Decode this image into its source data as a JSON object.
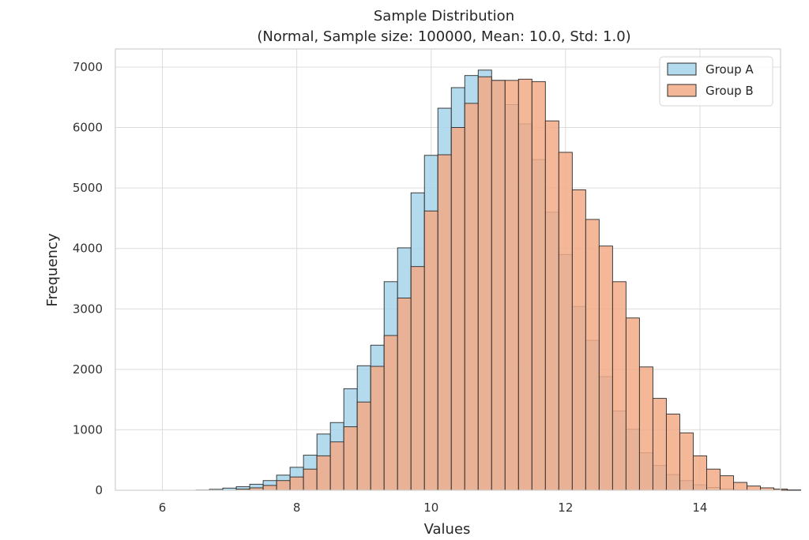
{
  "chart_data": {
    "type": "histogram",
    "title_line1": "Sample Distribution",
    "title_line2": "(Normal, Sample size: 100000, Mean: 10.0, Std: 1.0)",
    "xlabel": "Values",
    "ylabel": "Frequency",
    "xlim": [
      5.3,
      15.2
    ],
    "ylim": [
      0,
      7300
    ],
    "xticks": [
      6,
      8,
      10,
      12,
      14
    ],
    "yticks": [
      0,
      1000,
      2000,
      3000,
      4000,
      5000,
      6000,
      7000
    ],
    "grid": true,
    "legend_position": "top-right",
    "series": [
      {
        "name": "Group A",
        "fill": "#a6d3ea",
        "opacity": 0.85,
        "edge": "#2b2b2b",
        "bin_start": 6.5,
        "bin_width": 0.2,
        "values": [
          4,
          16,
          36,
          60,
          100,
          160,
          250,
          380,
          580,
          930,
          1120,
          1680,
          2060,
          2400,
          3450,
          4010,
          4920,
          5540,
          6320,
          6660,
          6860,
          6950,
          6780,
          6380,
          6060,
          5470,
          4600,
          3900,
          3040,
          2480,
          1880,
          1310,
          1010,
          620,
          410,
          260,
          160,
          90,
          46,
          20,
          8,
          3
        ]
      },
      {
        "name": "Group B",
        "fill": "#f2aa86",
        "opacity": 0.85,
        "edge": "#2b2b2b",
        "bin_start": 7.1,
        "bin_width": 0.2,
        "values": [
          20,
          40,
          80,
          160,
          220,
          350,
          570,
          800,
          1050,
          1460,
          2050,
          2560,
          3180,
          3700,
          4620,
          5550,
          6000,
          6400,
          6840,
          6780,
          6780,
          6800,
          6760,
          6110,
          5590,
          4970,
          4480,
          4040,
          3450,
          2850,
          2040,
          1520,
          1260,
          950,
          570,
          350,
          240,
          130,
          70,
          40,
          20,
          5
        ]
      }
    ]
  }
}
